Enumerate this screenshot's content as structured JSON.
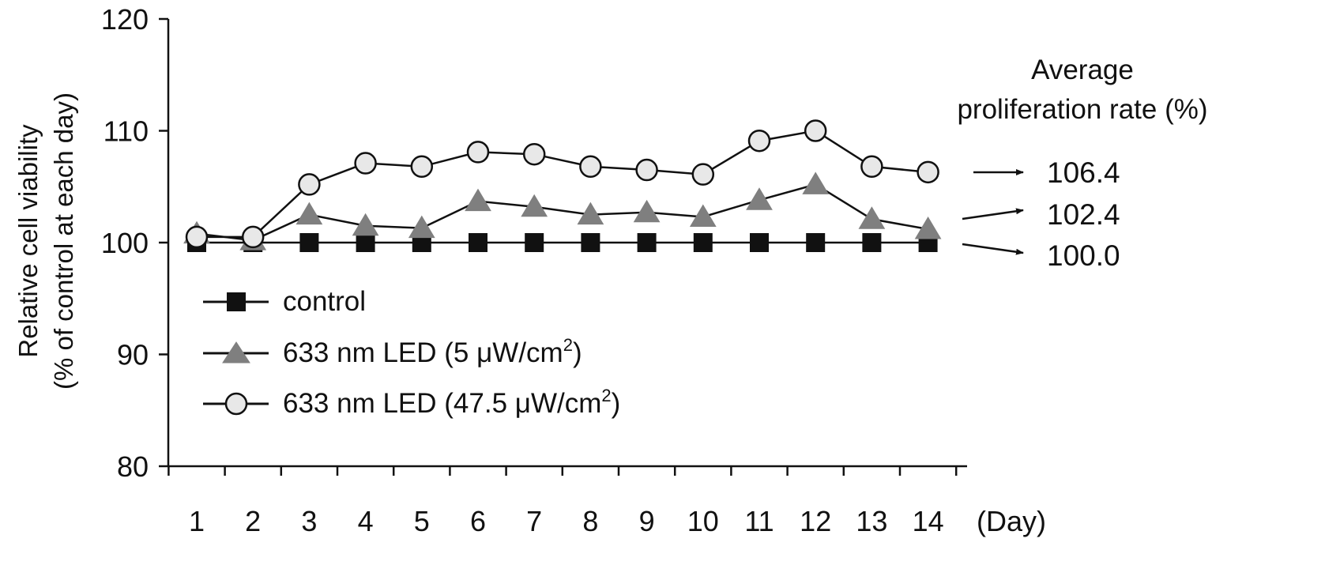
{
  "chart_data": {
    "type": "line",
    "ylabel": [
      "Relative cell viability",
      "(% of control at each day)"
    ],
    "xunit": "(Day)",
    "ylim": [
      80,
      120
    ],
    "yticks": [
      80,
      90,
      100,
      110,
      120
    ],
    "categories": [
      "1",
      "2",
      "3",
      "4",
      "5",
      "6",
      "7",
      "8",
      "9",
      "10",
      "11",
      "12",
      "13",
      "14"
    ],
    "series": [
      {
        "name": "control",
        "marker": "square",
        "color": "#111111",
        "values": [
          100,
          100,
          100,
          100,
          100,
          100,
          100,
          100,
          100,
          100,
          100,
          100,
          100,
          100
        ]
      },
      {
        "name": "633 nm LED (5 μW/cm",
        "name_sup": "2",
        "name_tail": ")",
        "marker": "triangle",
        "color": "#7f7f7f",
        "values": [
          100.8,
          100.2,
          102.5,
          101.5,
          101.3,
          103.7,
          103.2,
          102.5,
          102.7,
          102.3,
          103.8,
          105.2,
          102.1,
          101.2
        ]
      },
      {
        "name": "633 nm LED (47.5 μW/cm",
        "name_sup": "2",
        "name_tail": ")",
        "marker": "circle",
        "color": "#e8e8e8",
        "values": [
          100.5,
          100.5,
          105.2,
          107.1,
          106.8,
          108.1,
          107.9,
          106.8,
          106.5,
          106.1,
          109.1,
          110.0,
          106.8,
          106.3
        ]
      }
    ],
    "average": {
      "title_line1": "Average",
      "title_line2": "proliferation rate (%)",
      "values": [
        "106.4",
        "102.4",
        "100.0"
      ]
    },
    "legend_position": "lower-left inside plot",
    "grid": false
  }
}
